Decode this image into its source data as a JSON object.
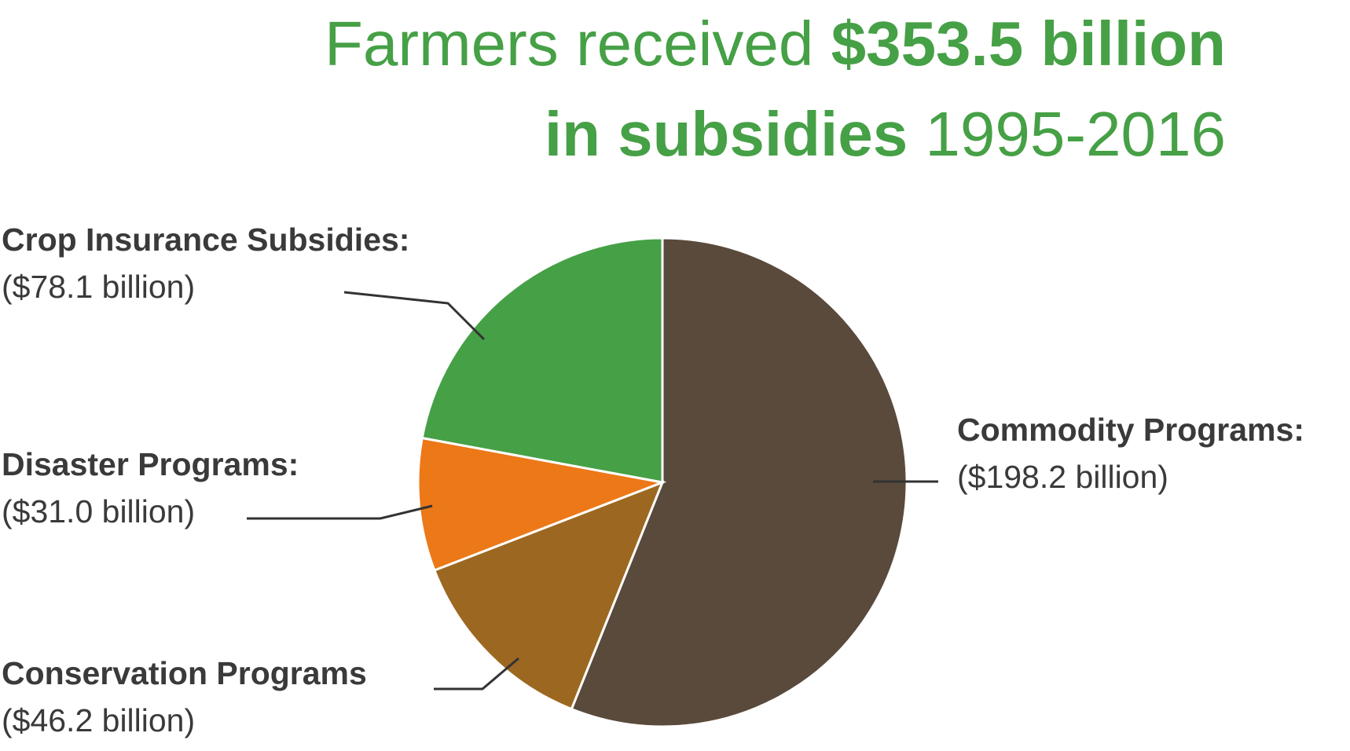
{
  "chart_data": {
    "type": "pie",
    "title_lines": [
      [
        "Farmers received",
        "$353.5 billion"
      ],
      [
        "in subsidies",
        "1995-2016"
      ]
    ],
    "categories": [
      "Commodity Programs:",
      "Conservation Programs",
      "Disaster Programs:",
      "Crop Insurance Subsidies:"
    ],
    "values": [
      198.2,
      46.2,
      31.0,
      78.1
    ],
    "value_labels": [
      "($198.2 billion)",
      "($46.2 billion)",
      "($31.0 billion)",
      "($78.1 billion)"
    ],
    "colors": [
      "#5a4a3c",
      "#9c6821",
      "#ec7818",
      "#46a046"
    ]
  }
}
